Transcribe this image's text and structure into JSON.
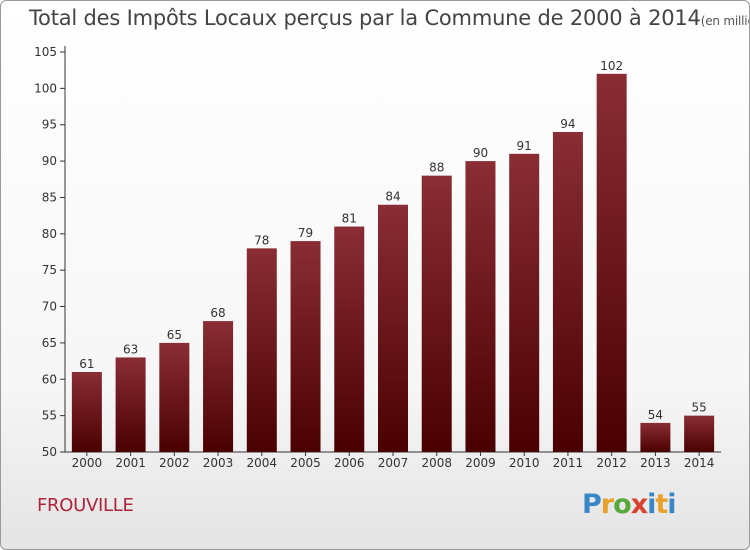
{
  "header": {
    "title": "Total des Impôts Locaux perçus par la Commune de 2000 à 2014",
    "unit": "(en milliers d'€)"
  },
  "commune": "FROUVILLE",
  "logo": {
    "text": "Proxiti"
  },
  "colors": {
    "bar_top": "#8a2d35",
    "bar_bottom": "#4a0000",
    "commune": "#b0233a"
  },
  "chart_data": {
    "type": "bar",
    "categories": [
      "2000",
      "2001",
      "2002",
      "2003",
      "2004",
      "2005",
      "2006",
      "2007",
      "2008",
      "2009",
      "2010",
      "2011",
      "2012",
      "2013",
      "2014"
    ],
    "values": [
      61,
      63,
      65,
      68,
      78,
      79,
      81,
      84,
      88,
      90,
      91,
      94,
      102,
      54,
      55
    ],
    "ylim": [
      50,
      105
    ],
    "yticks": [
      50,
      55,
      60,
      65,
      70,
      75,
      80,
      85,
      90,
      95,
      100,
      105
    ],
    "grid": false,
    "data_labels": true
  }
}
